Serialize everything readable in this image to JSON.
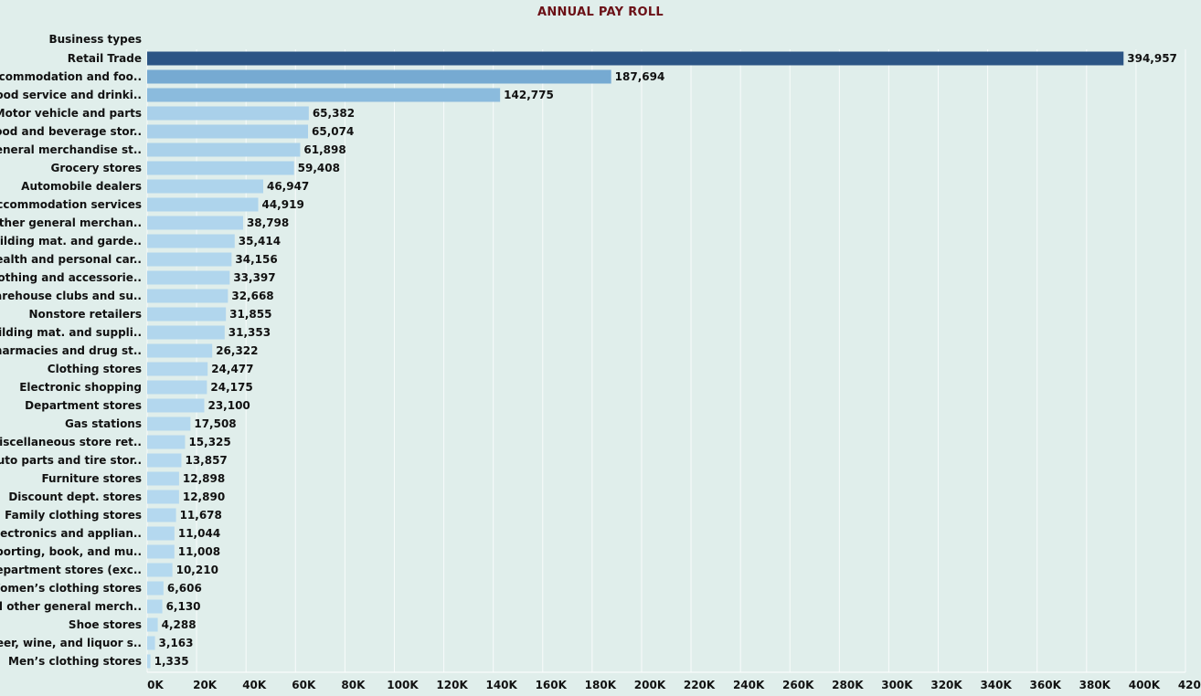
{
  "chart_data": {
    "type": "bar",
    "orientation": "horizontal",
    "title": "ANNUAL PAY ROLL",
    "row_header": "Business types",
    "xlim": [
      0,
      420000
    ],
    "x_ticks": [
      0,
      20000,
      40000,
      60000,
      80000,
      100000,
      120000,
      140000,
      160000,
      180000,
      200000,
      220000,
      240000,
      260000,
      280000,
      300000,
      320000,
      340000,
      360000,
      380000,
      400000,
      420000
    ],
    "x_tick_labels": [
      "0K",
      "20K",
      "40K",
      "60K",
      "80K",
      "100K",
      "120K",
      "140K",
      "160K",
      "180K",
      "200K",
      "220K",
      "240K",
      "260K",
      "280K",
      "300K",
      "320K",
      "340K",
      "360K",
      "380K",
      "400K",
      "420K"
    ],
    "grid": true,
    "color_scale": {
      "low": "#b5d9ef",
      "mid": "#7aaed6",
      "high": "#2c5585"
    },
    "categories": [
      "Retail Trade",
      "Accommodation and foo..",
      "Food service and drinki..",
      "Motor vehicle and parts",
      "Food and beverage stor..",
      "General merchandise st..",
      "Grocery stores",
      "Automobile dealers",
      "Accommodation services",
      "Other general merchan..",
      "Building mat. and garde..",
      "Health and personal car..",
      "Clothing and accessorie..",
      "Warehouse clubs and su..",
      "Nonstore retailers",
      "Building mat. and suppli..",
      "Pharmacies and drug st..",
      "Clothing stores",
      "Electronic shopping",
      "Department stores",
      "Gas stations",
      "Miscellaneous store ret..",
      "Auto parts and tire stor..",
      "Furniture stores",
      "Discount dept. stores",
      "Family clothing stores",
      "Electronics and applian..",
      "Sporting, book, and  mu..",
      "Department stores (exc..",
      "Women’s clothing stores",
      "All other general merch..",
      "Shoe stores",
      "Beer, wine, and liquor s..",
      "Men’s clothing stores"
    ],
    "values": [
      394957,
      187694,
      142775,
      65382,
      65074,
      61898,
      59408,
      46947,
      44919,
      38798,
      35414,
      34156,
      33397,
      32668,
      31855,
      31353,
      26322,
      24477,
      24175,
      23100,
      17508,
      15325,
      13857,
      12898,
      12890,
      11678,
      11044,
      11008,
      10210,
      6606,
      6130,
      4288,
      3163,
      1335
    ],
    "value_labels": [
      "394,957",
      "187,694",
      "142,775",
      "65,382",
      "65,074",
      "61,898",
      "59,408",
      "46,947",
      "44,919",
      "38,798",
      "35,414",
      "34,156",
      "33,397",
      "32,668",
      "31,855",
      "31,353",
      "26,322",
      "24,477",
      "24,175",
      "23,100",
      "17,508",
      "15,325",
      "13,857",
      "12,898",
      "12,890",
      "11,678",
      "11,044",
      "11,008",
      "10,210",
      "6,606",
      "6,130",
      "4,288",
      "3,163",
      "1,335"
    ]
  }
}
